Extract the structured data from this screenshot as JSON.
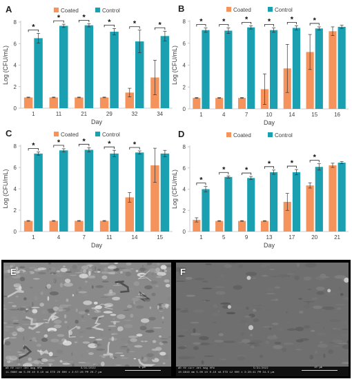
{
  "chart_data": [
    {
      "type": "bar",
      "panel_label": "A",
      "categories": [
        "1",
        "11",
        "21",
        "29",
        "32",
        "34"
      ],
      "xlabel": "Day",
      "ylabel": "Log (CFU/mL)",
      "ylim": [
        0,
        8
      ],
      "yticks": [
        0,
        2,
        4,
        6,
        8
      ],
      "legend": "top",
      "grid": false,
      "series": [
        {
          "name": "Coated",
          "color": "#f4945c",
          "values": [
            1.0,
            1.0,
            1.0,
            1.0,
            1.45,
            2.85
          ],
          "errors": [
            0.03,
            0.03,
            0.03,
            0.03,
            0.4,
            1.6
          ]
        },
        {
          "name": "Control",
          "color": "#1aa0b1",
          "values": [
            6.5,
            7.65,
            7.7,
            7.1,
            6.2,
            6.7
          ],
          "errors": [
            0.45,
            0.15,
            0.15,
            0.3,
            1.05,
            0.45
          ]
        }
      ],
      "significance": [
        0,
        1,
        2,
        3,
        4,
        5
      ],
      "significance_label": "*"
    },
    {
      "type": "bar",
      "panel_label": "B",
      "categories": [
        "1",
        "4",
        "7",
        "10",
        "14",
        "15",
        "16"
      ],
      "xlabel": "Day",
      "ylabel": "Log (CFU/mL)",
      "ylim": [
        0,
        8
      ],
      "yticks": [
        0,
        2,
        4,
        6,
        8
      ],
      "legend": "top",
      "grid": false,
      "series": [
        {
          "name": "Coated",
          "color": "#f4945c",
          "values": [
            1.0,
            1.0,
            1.0,
            1.8,
            3.7,
            5.2,
            7.1
          ],
          "errors": [
            0.03,
            0.03,
            0.03,
            1.4,
            2.2,
            1.6,
            0.4
          ]
        },
        {
          "name": "Control",
          "color": "#1aa0b1",
          "values": [
            7.2,
            7.15,
            7.45,
            7.2,
            7.4,
            7.35,
            7.5
          ],
          "errors": [
            0.2,
            0.25,
            0.15,
            0.2,
            0.2,
            0.15,
            0.15
          ]
        }
      ],
      "significance": [
        0,
        1,
        2,
        3,
        4,
        5
      ],
      "significance_label": "*"
    },
    {
      "type": "bar",
      "panel_label": "C",
      "categories": [
        "1",
        "4",
        "7",
        "11",
        "14",
        "15"
      ],
      "xlabel": "Day",
      "ylabel": "Log (CFU/mL)",
      "ylim": [
        0,
        8
      ],
      "yticks": [
        0,
        2,
        4,
        6,
        8
      ],
      "legend": "top",
      "grid": false,
      "series": [
        {
          "name": "Coated",
          "color": "#f4945c",
          "values": [
            1.0,
            1.0,
            1.0,
            1.0,
            3.2,
            6.2
          ],
          "errors": [
            0.03,
            0.03,
            0.03,
            0.03,
            0.45,
            1.6
          ]
        },
        {
          "name": "Control",
          "color": "#1aa0b1",
          "values": [
            7.3,
            7.6,
            7.65,
            7.3,
            7.4,
            7.3
          ],
          "errors": [
            0.15,
            0.15,
            0.2,
            0.3,
            0.15,
            0.3
          ]
        }
      ],
      "significance": [
        0,
        1,
        2,
        3,
        4
      ],
      "significance_label": "*"
    },
    {
      "type": "bar",
      "panel_label": "D",
      "categories": [
        "1",
        "5",
        "9",
        "13",
        "17",
        "20",
        "21"
      ],
      "xlabel": "Day",
      "ylabel": "Log (CFU/mL)",
      "ylim": [
        0,
        8
      ],
      "yticks": [
        0,
        2,
        4,
        6,
        8
      ],
      "legend": "top",
      "grid": false,
      "series": [
        {
          "name": "Coated",
          "color": "#f4945c",
          "values": [
            1.1,
            1.0,
            1.0,
            1.0,
            2.8,
            4.35,
            6.25
          ],
          "errors": [
            0.2,
            0.03,
            0.03,
            0.03,
            0.8,
            0.25,
            0.2
          ]
        },
        {
          "name": "Control",
          "color": "#1aa0b1",
          "values": [
            4.0,
            5.15,
            5.05,
            5.6,
            5.6,
            6.1,
            6.5
          ],
          "errors": [
            0.25,
            0.1,
            0.15,
            0.2,
            0.25,
            0.3,
            0.1
          ]
        }
      ],
      "significance": [
        0,
        1,
        2,
        3,
        4,
        5
      ],
      "significance_label": "*"
    }
  ],
  "micrographs": [
    {
      "panel_label": "E",
      "texture": "rough",
      "metadata_left": "WD HV curr det mag HFW",
      "metadata_values": "11.0860 mm  5.00 kV  0.10 nA  ETD  20 000 x  2:57:28 PM  20.7 µm",
      "date": "5/31/2022",
      "scale_label": "5 µm"
    },
    {
      "panel_label": "F",
      "texture": "smooth",
      "metadata_left": "WD HV curr det mag HFW",
      "metadata_values": "10.9616 mm  5.00 kV  0.10 nA  ETD  12 000 x  3:28:41 PM  34.5 µm",
      "date": "5/31/2022",
      "scale_label": "10 µm"
    }
  ]
}
